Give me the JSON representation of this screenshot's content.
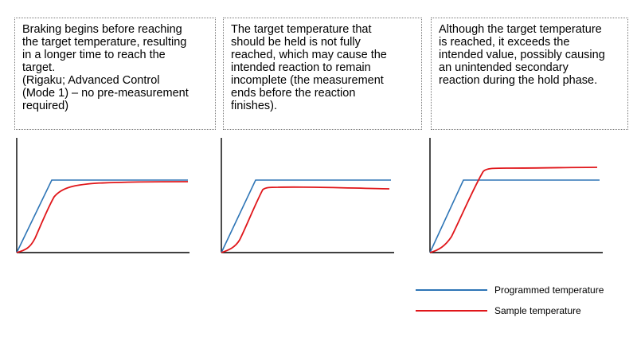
{
  "callouts": [
    {
      "text": "Braking begins before reaching\nthe target temperature, resulting\nin a longer time to reach the\ntarget.\n(Rigaku; Advanced Control\n(Mode 1) – no pre-measurement\nrequired)"
    },
    {
      "text": "The target temperature that\nshould be held is not fully\nreached, which may cause the\nintended reaction to remain\nincomplete (the measurement\nends before the reaction\nfinishes)."
    },
    {
      "text": "Although the target temperature\nis reached, it exceeds the\nintended value, possibly causing\nan unintended secondary\nreaction during the hold phase."
    }
  ],
  "legend": {
    "programmed": {
      "label": "Programmed temperature",
      "color": "#2e75b6"
    },
    "sample": {
      "label": "Sample temperature",
      "color": "#e0161a"
    }
  },
  "colors": {
    "axis": "#000000",
    "callout_border": "#7a7a7a"
  }
}
